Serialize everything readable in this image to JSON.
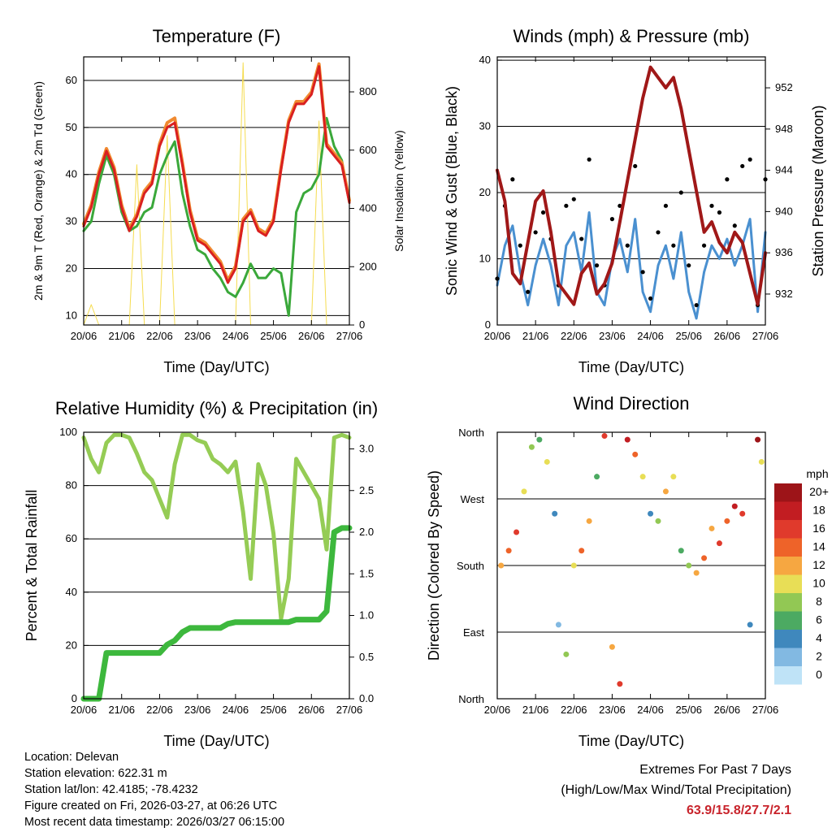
{
  "x_ticks": [
    "20/06",
    "21/06",
    "22/06",
    "23/06",
    "24/06",
    "25/06",
    "26/06",
    "27/06"
  ],
  "chart_data": [
    {
      "type": "line",
      "title": "Temperature (F)",
      "xlabel": "Time (Day/UTC)",
      "ylabel": "2m & 9m T (Red, Orange) & 2m Td (Green)",
      "ylabel_right": "Solar Insolation (Yellow)",
      "ylim": [
        8,
        65
      ],
      "ylim_right": [
        0,
        920
      ],
      "yticks": [
        "10",
        "20",
        "30",
        "40",
        "50",
        "60"
      ],
      "yticks_right": [
        "0",
        "200",
        "400",
        "600",
        "800"
      ],
      "x": [
        0,
        0.2,
        0.4,
        0.6,
        0.8,
        1.0,
        1.2,
        1.4,
        1.6,
        1.8,
        2.0,
        2.2,
        2.4,
        2.6,
        2.8,
        3.0,
        3.2,
        3.4,
        3.6,
        3.8,
        4.0,
        4.2,
        4.4,
        4.6,
        4.8,
        5.0,
        5.2,
        5.4,
        5.6,
        5.8,
        6.0,
        6.2,
        6.4,
        6.6,
        6.8,
        7.0
      ],
      "series": [
        {
          "name": "2m T",
          "color": "#d92020",
          "values": [
            29,
            33,
            40,
            45,
            41,
            33,
            28,
            31,
            36,
            38,
            46,
            50,
            51,
            42,
            32,
            26,
            25,
            23,
            21,
            17,
            20,
            30,
            32,
            28,
            27,
            30,
            41,
            51,
            55,
            55,
            57,
            63,
            46,
            44,
            42,
            34
          ]
        },
        {
          "name": "9m T",
          "color": "#f08a30",
          "values": [
            29.5,
            33.5,
            40.5,
            45.5,
            41.5,
            33.5,
            28.5,
            31.5,
            36.5,
            38.5,
            46.5,
            51,
            52,
            42.5,
            32.5,
            26.5,
            25.5,
            23.5,
            21.5,
            17.5,
            20.5,
            30.5,
            32.5,
            28.5,
            27.5,
            30.5,
            41.5,
            51.5,
            55.5,
            55.5,
            57.5,
            63.5,
            46.5,
            44.5,
            42.5,
            34.5
          ]
        },
        {
          "name": "2m Td",
          "color": "#3aa83a",
          "values": [
            28,
            30,
            38,
            44,
            40,
            32,
            28,
            29,
            32,
            33,
            40,
            44,
            47,
            36,
            29,
            24,
            23,
            20,
            18,
            15,
            14,
            17,
            21,
            18,
            18,
            20,
            19,
            10,
            32,
            36,
            37,
            40,
            52,
            46,
            43,
            34
          ]
        },
        {
          "name": "Solar Insolation",
          "color": "#f5dc50",
          "axis": "right",
          "values": [
            0,
            70,
            0,
            0,
            0,
            0,
            0,
            550,
            0,
            0,
            0,
            650,
            0,
            0,
            0,
            0,
            0,
            0,
            0,
            0,
            0,
            900,
            0,
            0,
            0,
            0,
            0,
            0,
            0,
            0,
            0,
            700,
            0,
            0,
            0,
            0
          ]
        }
      ]
    },
    {
      "type": "line",
      "title": "Winds (mph) & Pressure (mb)",
      "xlabel": "Time (Day/UTC)",
      "ylabel": "Sonic Wind & Gust (Blue, Black)",
      "ylabel_right": "Station Pressure (Maroon)",
      "ylim": [
        0,
        40.5
      ],
      "ylim_right": [
        929,
        955
      ],
      "yticks": [
        "0",
        "10",
        "20",
        "30",
        "40"
      ],
      "yticks_right": [
        "932",
        "936",
        "940",
        "944",
        "948",
        "952"
      ],
      "x": [
        0,
        0.2,
        0.4,
        0.6,
        0.8,
        1.0,
        1.2,
        1.4,
        1.6,
        1.8,
        2.0,
        2.2,
        2.4,
        2.6,
        2.8,
        3.0,
        3.2,
        3.4,
        3.6,
        3.8,
        4.0,
        4.2,
        4.4,
        4.6,
        4.8,
        5.0,
        5.2,
        5.4,
        5.6,
        5.8,
        6.0,
        6.2,
        6.4,
        6.6,
        6.8,
        7.0
      ],
      "series": [
        {
          "name": "Sonic Wind",
          "color": "#4a90d0",
          "values": [
            6,
            12,
            15,
            8,
            3,
            9,
            13,
            9,
            3,
            12,
            14,
            8,
            17,
            5,
            3,
            10,
            13,
            8,
            16,
            5,
            2,
            9,
            12,
            7,
            14,
            5,
            1,
            8,
            12,
            10,
            13,
            9,
            12,
            16,
            2,
            14
          ]
        },
        {
          "name": "Gust",
          "color": "#000000",
          "values": [
            7,
            18,
            22,
            12,
            5,
            14,
            17,
            13,
            6,
            18,
            19,
            13,
            25,
            9,
            6,
            16,
            18,
            12,
            24,
            8,
            4,
            14,
            18,
            12,
            20,
            9,
            3,
            12,
            18,
            17,
            22,
            15,
            24,
            25,
            3,
            22
          ]
        },
        {
          "name": "Station Pressure",
          "color": "#a01818",
          "axis": "right",
          "values": [
            944,
            941,
            934,
            933,
            937,
            941,
            942,
            938,
            933,
            932,
            931,
            934,
            935,
            932,
            933,
            935,
            939,
            943,
            947,
            951,
            954,
            953,
            952,
            953,
            950,
            946,
            942,
            938,
            939,
            937,
            936,
            938,
            937,
            934,
            931,
            936
          ]
        }
      ]
    },
    {
      "type": "line",
      "title": "Relative Humidity (%) & Precipitation (in)",
      "xlabel": "Time (Day/UTC)",
      "ylabel": "Percent & Total Rainfall",
      "ylim": [
        0,
        100
      ],
      "ylim_right": [
        0,
        3.2
      ],
      "yticks": [
        "0",
        "20",
        "40",
        "60",
        "80",
        "100"
      ],
      "yticks_right": [
        "0.0",
        "0.5",
        "1.0",
        "1.5",
        "2.0",
        "2.5",
        "3.0"
      ],
      "x": [
        0,
        0.2,
        0.4,
        0.6,
        0.8,
        1.0,
        1.2,
        1.4,
        1.6,
        1.8,
        2.0,
        2.2,
        2.4,
        2.6,
        2.8,
        3.0,
        3.2,
        3.4,
        3.6,
        3.8,
        4.0,
        4.2,
        4.4,
        4.6,
        4.8,
        5.0,
        5.2,
        5.4,
        5.6,
        5.8,
        6.0,
        6.2,
        6.4,
        6.6,
        6.8,
        7.0
      ],
      "series": [
        {
          "name": "Relative Humidity",
          "color": "#95cc55",
          "values": [
            98,
            90,
            85,
            96,
            99,
            99,
            98,
            92,
            85,
            82,
            75,
            68,
            88,
            99,
            99,
            97,
            96,
            90,
            88,
            85,
            89,
            70,
            45,
            88,
            80,
            62,
            30,
            45,
            90,
            85,
            80,
            75,
            56,
            98,
            99,
            98
          ]
        },
        {
          "name": "Total Rainfall",
          "color": "#3db83d",
          "axis": "right",
          "values": [
            0,
            0,
            0,
            0.55,
            0.55,
            0.55,
            0.55,
            0.55,
            0.55,
            0.55,
            0.55,
            0.65,
            0.7,
            0.8,
            0.85,
            0.85,
            0.85,
            0.85,
            0.85,
            0.9,
            0.92,
            0.92,
            0.92,
            0.92,
            0.92,
            0.92,
            0.92,
            0.92,
            0.95,
            0.95,
            0.95,
            0.95,
            1.05,
            2.0,
            2.05,
            2.05
          ]
        }
      ]
    },
    {
      "type": "scatter",
      "title": "Wind Direction",
      "xlabel": "Time (Day/UTC)",
      "ylabel": "Direction (Colored By Speed)",
      "yticks": [
        "North",
        "East",
        "South",
        "West",
        "North"
      ],
      "ylim": [
        0,
        360
      ],
      "colorbar_title": "mph",
      "colorbar_labels": [
        "20+",
        "18",
        "16",
        "14",
        "12",
        "10",
        "8",
        "6",
        "4",
        "2",
        "0"
      ],
      "colorbar_colors": [
        "#9d1418",
        "#c21d22",
        "#e03a2c",
        "#ee6329",
        "#f6a741",
        "#e8de56",
        "#92c854",
        "#4caa62",
        "#3f88bd",
        "#82b9e2",
        "#bfe3f7"
      ],
      "points_x": [
        0.1,
        0.3,
        0.5,
        0.7,
        0.9,
        1.1,
        1.3,
        1.5,
        1.6,
        1.8,
        2.0,
        2.2,
        2.4,
        2.6,
        2.8,
        3.0,
        3.2,
        3.4,
        3.6,
        3.8,
        4.0,
        4.2,
        4.4,
        4.6,
        4.8,
        5.0,
        5.2,
        5.4,
        5.6,
        5.8,
        6.0,
        6.2,
        6.4,
        6.6,
        6.8,
        6.9
      ],
      "points_y": [
        180,
        200,
        225,
        280,
        340,
        350,
        320,
        250,
        100,
        60,
        180,
        200,
        240,
        300,
        355,
        70,
        20,
        350,
        330,
        300,
        250,
        240,
        280,
        300,
        200,
        180,
        170,
        190,
        230,
        210,
        240,
        260,
        250,
        100,
        350,
        320
      ],
      "points_speed": [
        12,
        14,
        16,
        10,
        8,
        6,
        10,
        4,
        2,
        8,
        10,
        14,
        12,
        6,
        16,
        12,
        16,
        18,
        14,
        10,
        4,
        8,
        12,
        10,
        6,
        8,
        12,
        14,
        12,
        16,
        14,
        18,
        16,
        4,
        20,
        10
      ]
    }
  ],
  "footer": {
    "location": "Location: Delevan",
    "elevation": "Station elevation: 622.31 m",
    "latlon": "Station lat/lon: 42.4185; -78.4232",
    "created": "Figure created on Fri, 2026-03-27, at 06:26 UTC",
    "recent": "Most recent data timestamp: 2026/03/27 06:15:00",
    "extremes_title": "Extremes For Past 7 Days",
    "extremes_sub": "(High/Low/Max Wind/Total Precipitation)",
    "extremes_value": "63.9/15.8/27.7/2.1"
  }
}
